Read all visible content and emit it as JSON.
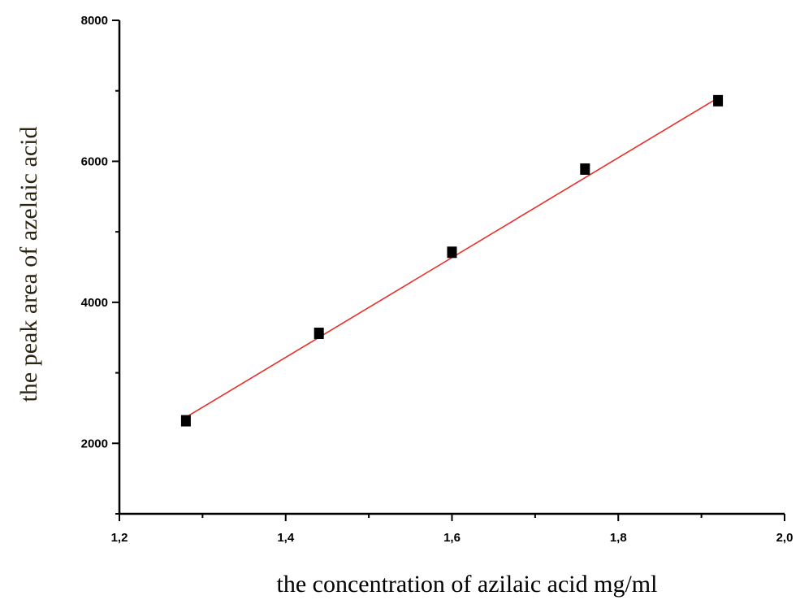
{
  "chart_data": {
    "type": "scatter",
    "title": "",
    "xlabel": "the concentration of azilaic acid mg/ml",
    "ylabel": "the peak area of azelaic acid",
    "xlim": [
      1.2,
      2.0
    ],
    "ylim": [
      1000,
      8000
    ],
    "x_ticks": [
      1.2,
      1.4,
      1.6,
      1.8,
      2.0
    ],
    "x_tick_labels": [
      "1,2",
      "1,4",
      "1,6",
      "1,8",
      "2,0"
    ],
    "y_ticks": [
      2000,
      4000,
      6000,
      8000
    ],
    "y_tick_labels": [
      "2000",
      "4000",
      "6000",
      "8000"
    ],
    "y_minor_ticks": [
      1000,
      3000,
      5000,
      7000
    ],
    "x_minor_ticks": [
      1.3,
      1.5,
      1.7,
      1.9
    ],
    "grid": false,
    "legend": "none",
    "series": [
      {
        "marker": "square",
        "color": "#000000",
        "points": [
          {
            "x": 1.28,
            "y": 2320
          },
          {
            "x": 1.44,
            "y": 3560
          },
          {
            "x": 1.6,
            "y": 4710
          },
          {
            "x": 1.76,
            "y": 5890
          },
          {
            "x": 1.92,
            "y": 6860
          }
        ]
      }
    ],
    "fit_line": {
      "color": "#e8302a",
      "x": [
        1.28,
        1.92
      ],
      "y": [
        2370,
        6900
      ]
    }
  }
}
